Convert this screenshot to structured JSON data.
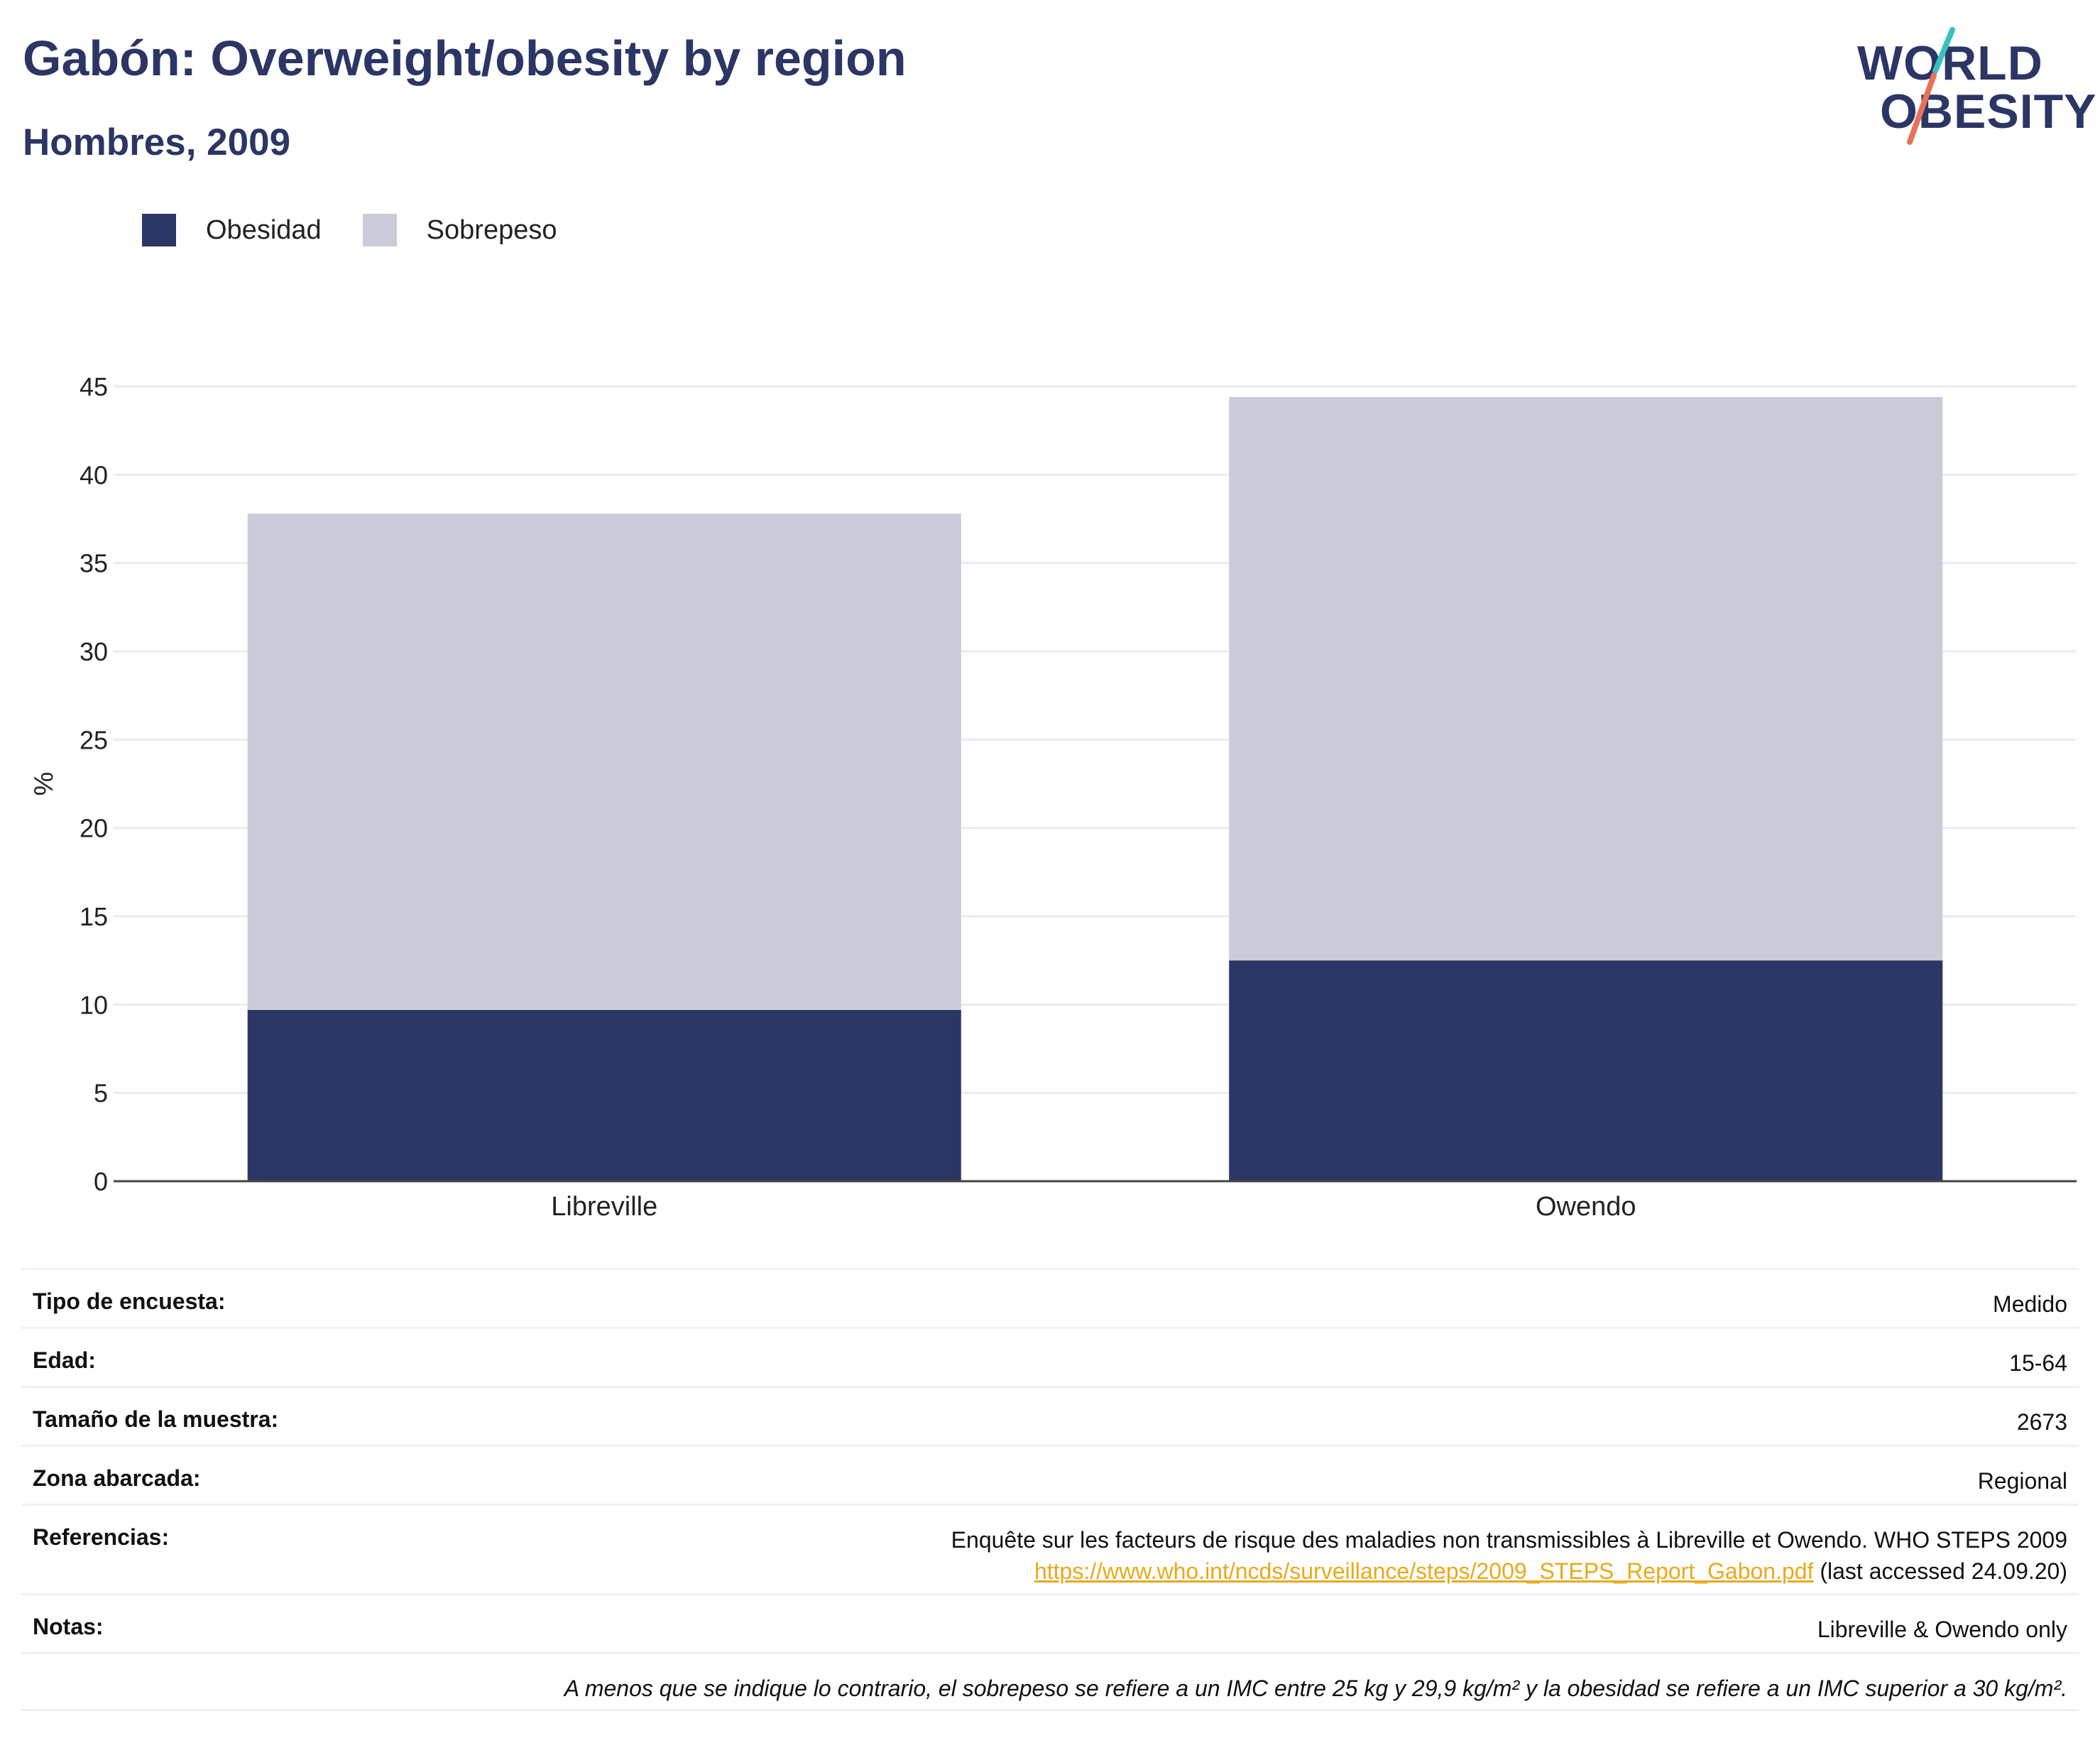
{
  "header": {
    "title": "Gabón: Overweight/obesity by region",
    "subtitle": "Hombres, 2009",
    "logo_line1": "WORLD",
    "logo_line2": "OBESITY"
  },
  "legend": [
    {
      "label": "Obesidad",
      "color": "#2b3664"
    },
    {
      "label": "Sobrepeso",
      "color": "#c9ccd8"
    }
  ],
  "chart_data": {
    "type": "bar",
    "stacked": true,
    "categories": [
      "Libreville",
      "Owendo"
    ],
    "series": [
      {
        "name": "Obesidad",
        "values": [
          9.7,
          12.5
        ],
        "color": "#2b3664"
      },
      {
        "name": "Sobrepeso",
        "values": [
          28.1,
          31.9
        ],
        "color": "#c9ccd8"
      }
    ],
    "ylabel": "%",
    "ylim": [
      0,
      45
    ],
    "yticks": [
      0,
      5,
      10,
      15,
      20,
      25,
      30,
      35,
      40,
      45
    ],
    "grid": true,
    "legend_position": "top-left"
  },
  "info": {
    "survey_type_label": "Tipo de encuesta:",
    "survey_type_value": "Medido",
    "age_label": "Edad:",
    "age_value": "15-64",
    "sample_label": "Tamaño de la muestra:",
    "sample_value": "2673",
    "area_label": "Zona abarcada:",
    "area_value": "Regional",
    "references_label": "Referencias:",
    "references_text": "Enquête sur les facteurs de risque des maladies non transmissibles à Libreville et Owendo. WHO STEPS 2009",
    "references_link": "https://www.who.int/ncds/surveillance/steps/2009_STEPS_Report_Gabon.pdf",
    "references_accessed": " (last accessed 24.09.20)",
    "notes_label": "Notas:",
    "notes_value": "Libreville & Owendo only",
    "footnote": "A menos que se indique lo contrario, el sobrepeso se refiere a un IMC entre 25 kg y 29,9 kg/m² y la obesidad se refiere a un IMC superior a 30 kg/m²."
  }
}
